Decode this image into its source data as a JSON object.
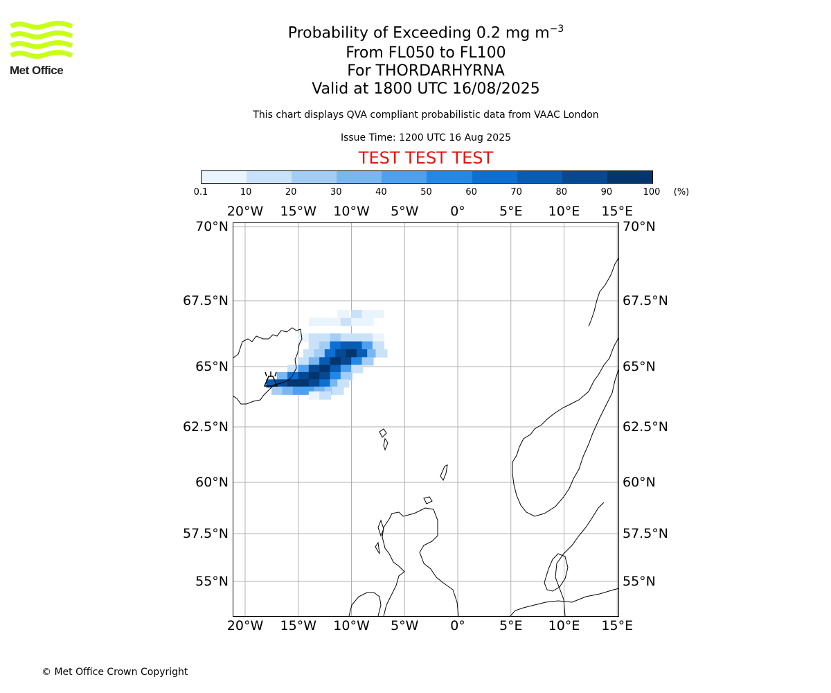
{
  "logo": {
    "name": "Met Office",
    "color": "#c8ff1a"
  },
  "title": {
    "main_prefix": "Probability of Exceeding 0.2 mg m",
    "main_sup": "−3",
    "line2": "From FL050 to FL100",
    "line3": "For THORDARHYRNA",
    "line4": "Valid at 1800 UTC 16/08/2025"
  },
  "subtitle": "This chart displays QVA compliant probabilistic data from VAAC London",
  "issue_time": "Issue Time: 1200 UTC 16 Aug 2025",
  "test_banner": "TEST TEST TEST",
  "colorbar": {
    "ticks": [
      "0.1",
      "10",
      "20",
      "30",
      "40",
      "50",
      "60",
      "70",
      "80",
      "90",
      "100"
    ],
    "unit": "(%)",
    "colors": [
      "#eaf4fd",
      "#c9e2fa",
      "#a3cdf6",
      "#79b7f3",
      "#4ca0ef",
      "#2288e8",
      "#0b6fd3",
      "#075cb4",
      "#054992",
      "#03356e"
    ]
  },
  "map": {
    "lon_labels": [
      "20°W",
      "15°W",
      "10°W",
      "5°W",
      "0°",
      "5°E",
      "10°E",
      "15°E"
    ],
    "lat_labels": [
      "70°N",
      "67.5°N",
      "65°N",
      "62.5°N",
      "60°N",
      "57.5°N",
      "55°N"
    ],
    "volcano_marker": "volcano-symbol",
    "plume_cells": [
      [
        -13.5,
        66.7,
        1
      ],
      [
        -12.5,
        66.7,
        1
      ],
      [
        -11.5,
        66.7,
        1
      ],
      [
        -10.5,
        66.7,
        2
      ],
      [
        -9.5,
        66.7,
        1
      ],
      [
        -8.5,
        66.7,
        1
      ],
      [
        -10.8,
        67.0,
        1
      ],
      [
        -9.5,
        67.0,
        2
      ],
      [
        -8.5,
        67.0,
        1
      ],
      [
        -7.5,
        67.0,
        1
      ],
      [
        -14.5,
        66.1,
        1
      ],
      [
        -13.5,
        66.1,
        2
      ],
      [
        -12.5,
        66.1,
        2
      ],
      [
        -11.5,
        66.1,
        3
      ],
      [
        -10.5,
        66.1,
        2
      ],
      [
        -9.5,
        66.1,
        2
      ],
      [
        -8.5,
        66.1,
        2
      ],
      [
        -7.5,
        66.1,
        1
      ],
      [
        -13.5,
        65.8,
        2
      ],
      [
        -12.5,
        65.8,
        3
      ],
      [
        -11.5,
        65.8,
        7
      ],
      [
        -10.5,
        65.8,
        8
      ],
      [
        -9.5,
        65.8,
        8
      ],
      [
        -8.5,
        65.8,
        5
      ],
      [
        -7.5,
        65.8,
        2
      ],
      [
        -14.0,
        65.5,
        2
      ],
      [
        -13.0,
        65.5,
        3
      ],
      [
        -12.0,
        65.5,
        7
      ],
      [
        -11.0,
        65.5,
        9
      ],
      [
        -10.0,
        65.5,
        10
      ],
      [
        -9.0,
        65.5,
        8
      ],
      [
        -8.0,
        65.5,
        4
      ],
      [
        -7.2,
        65.5,
        2
      ],
      [
        -14.5,
        65.2,
        2
      ],
      [
        -13.5,
        65.2,
        4
      ],
      [
        -12.5,
        65.2,
        8
      ],
      [
        -11.5,
        65.2,
        10
      ],
      [
        -10.5,
        65.2,
        9
      ],
      [
        -9.5,
        65.2,
        6
      ],
      [
        -8.5,
        65.2,
        3
      ],
      [
        -15.5,
        64.9,
        2
      ],
      [
        -14.5,
        64.9,
        5
      ],
      [
        -13.5,
        64.9,
        9
      ],
      [
        -12.5,
        64.9,
        10
      ],
      [
        -11.5,
        64.9,
        8
      ],
      [
        -10.5,
        64.9,
        5
      ],
      [
        -9.5,
        64.9,
        2
      ],
      [
        -16.5,
        64.6,
        4
      ],
      [
        -15.5,
        64.6,
        7
      ],
      [
        -14.5,
        64.6,
        9
      ],
      [
        -13.5,
        64.6,
        10
      ],
      [
        -12.5,
        64.6,
        9
      ],
      [
        -11.5,
        64.6,
        6
      ],
      [
        -10.5,
        64.6,
        3
      ],
      [
        -17.5,
        64.3,
        8
      ],
      [
        -16.5,
        64.3,
        9
      ],
      [
        -15.5,
        64.3,
        10
      ],
      [
        -14.5,
        64.3,
        10
      ],
      [
        -13.5,
        64.3,
        9
      ],
      [
        -12.5,
        64.3,
        7
      ],
      [
        -11.5,
        64.3,
        4
      ],
      [
        -10.8,
        64.3,
        2
      ],
      [
        -17.0,
        64.0,
        3
      ],
      [
        -16.0,
        64.0,
        4
      ],
      [
        -15.0,
        64.0,
        5
      ],
      [
        -14.0,
        64.0,
        5
      ],
      [
        -13.0,
        64.0,
        4
      ],
      [
        -12.0,
        64.0,
        3
      ],
      [
        -11.3,
        64.0,
        2
      ],
      [
        -13.5,
        63.8,
        1
      ],
      [
        -12.5,
        63.8,
        2
      ]
    ]
  },
  "copyright": "© Met Office Crown Copyright"
}
